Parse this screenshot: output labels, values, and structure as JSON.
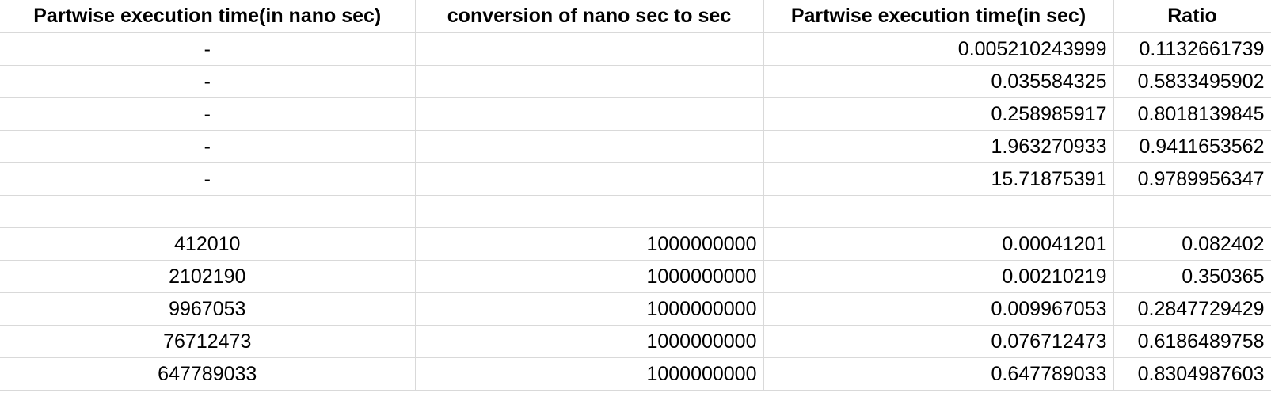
{
  "headers": [
    "Partwise execution time(in nano sec)",
    "conversion of nano sec to sec",
    "Partwise execution time(in sec)",
    "Ratio"
  ],
  "rows": [
    [
      "-",
      "",
      "0.005210243999",
      "0.1132661739"
    ],
    [
      "-",
      "",
      "0.035584325",
      "0.5833495902"
    ],
    [
      "-",
      "",
      "0.258985917",
      "0.8018139845"
    ],
    [
      "-",
      "",
      "1.963270933",
      "0.9411653562"
    ],
    [
      "-",
      "",
      "15.71875391",
      "0.9789956347"
    ],
    [
      "",
      "",
      "",
      ""
    ],
    [
      "412010",
      "1000000000",
      "0.00041201",
      "0.082402"
    ],
    [
      "2102190",
      "1000000000",
      "0.00210219",
      "0.350365"
    ],
    [
      "9967053",
      "1000000000",
      "0.009967053",
      "0.2847729429"
    ],
    [
      "76712473",
      "1000000000",
      "0.076712473",
      "0.6186489758"
    ],
    [
      "647789033",
      "1000000000",
      "0.647789033",
      "0.8304987603"
    ]
  ]
}
